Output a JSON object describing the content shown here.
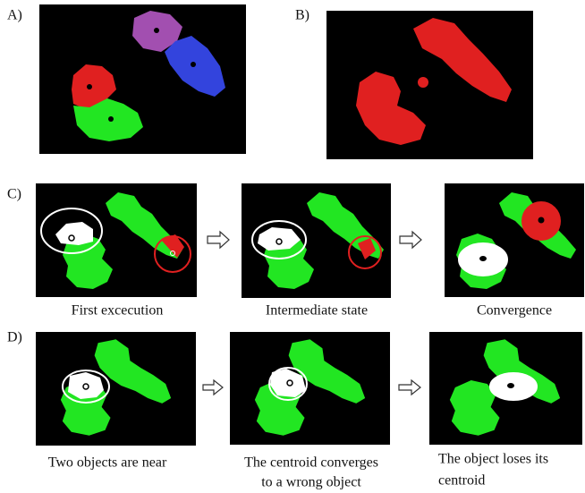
{
  "panel_a": {
    "label": "A)"
  },
  "panel_b": {
    "label": "B)"
  },
  "panel_c": {
    "label": "C)",
    "captions": [
      "First excecution",
      "Intermediate state",
      "Convergence"
    ]
  },
  "panel_d": {
    "label": "D)",
    "captions": [
      [
        "Two objects are near"
      ],
      [
        "The centroid converges",
        "to a wrong object"
      ],
      [
        "The object loses its",
        "centroid"
      ]
    ]
  }
}
